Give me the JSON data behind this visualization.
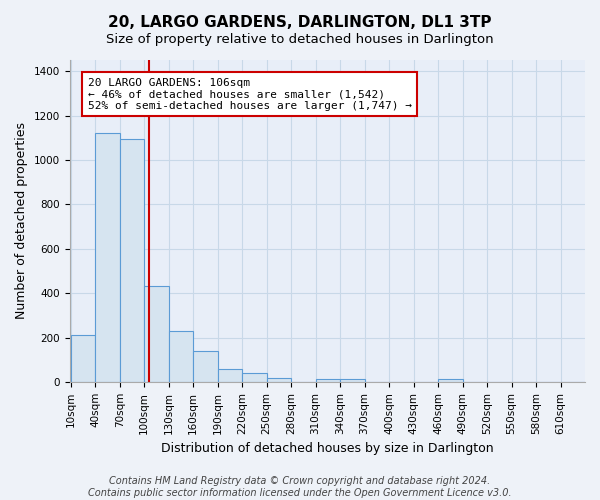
{
  "title": "20, LARGO GARDENS, DARLINGTON, DL1 3TP",
  "subtitle": "Size of property relative to detached houses in Darlington",
  "xlabel": "Distribution of detached houses by size in Darlington",
  "ylabel": "Number of detached properties",
  "bin_edges": [
    10,
    40,
    70,
    100,
    130,
    160,
    190,
    220,
    250,
    280,
    310,
    340,
    370,
    400,
    430,
    460,
    490,
    520,
    550,
    580,
    610,
    640
  ],
  "bar_labels": [
    "10sqm",
    "40sqm",
    "70sqm",
    "100sqm",
    "130sqm",
    "160sqm",
    "190sqm",
    "220sqm",
    "250sqm",
    "280sqm",
    "310sqm",
    "340sqm",
    "370sqm",
    "400sqm",
    "430sqm",
    "460sqm",
    "490sqm",
    "520sqm",
    "550sqm",
    "580sqm",
    "610sqm"
  ],
  "bar_values": [
    210,
    1120,
    1095,
    430,
    230,
    140,
    60,
    40,
    20,
    0,
    15,
    12,
    0,
    0,
    0,
    12,
    0,
    0,
    0,
    0,
    0
  ],
  "bar_fill_color": "#d6e4f0",
  "bar_edge_color": "#5b9bd5",
  "subject_line_value": 106,
  "subject_line_color": "#cc0000",
  "annotation_text": "20 LARGO GARDENS: 106sqm\n← 46% of detached houses are smaller (1,542)\n52% of semi-detached houses are larger (1,747) →",
  "annotation_box_color": "#ffffff",
  "annotation_box_edge": "#cc0000",
  "ylim": [
    0,
    1450
  ],
  "yticks": [
    0,
    200,
    400,
    600,
    800,
    1000,
    1200,
    1400
  ],
  "grid_color": "#c8d8e8",
  "footer_line1": "Contains HM Land Registry data © Crown copyright and database right 2024.",
  "footer_line2": "Contains public sector information licensed under the Open Government Licence v3.0.",
  "bg_color": "#eef2f8",
  "plot_bg_color": "#e8eef8",
  "title_fontsize": 11,
  "subtitle_fontsize": 9.5,
  "axis_label_fontsize": 9,
  "tick_fontsize": 7.5,
  "annotation_fontsize": 8,
  "footer_fontsize": 7
}
